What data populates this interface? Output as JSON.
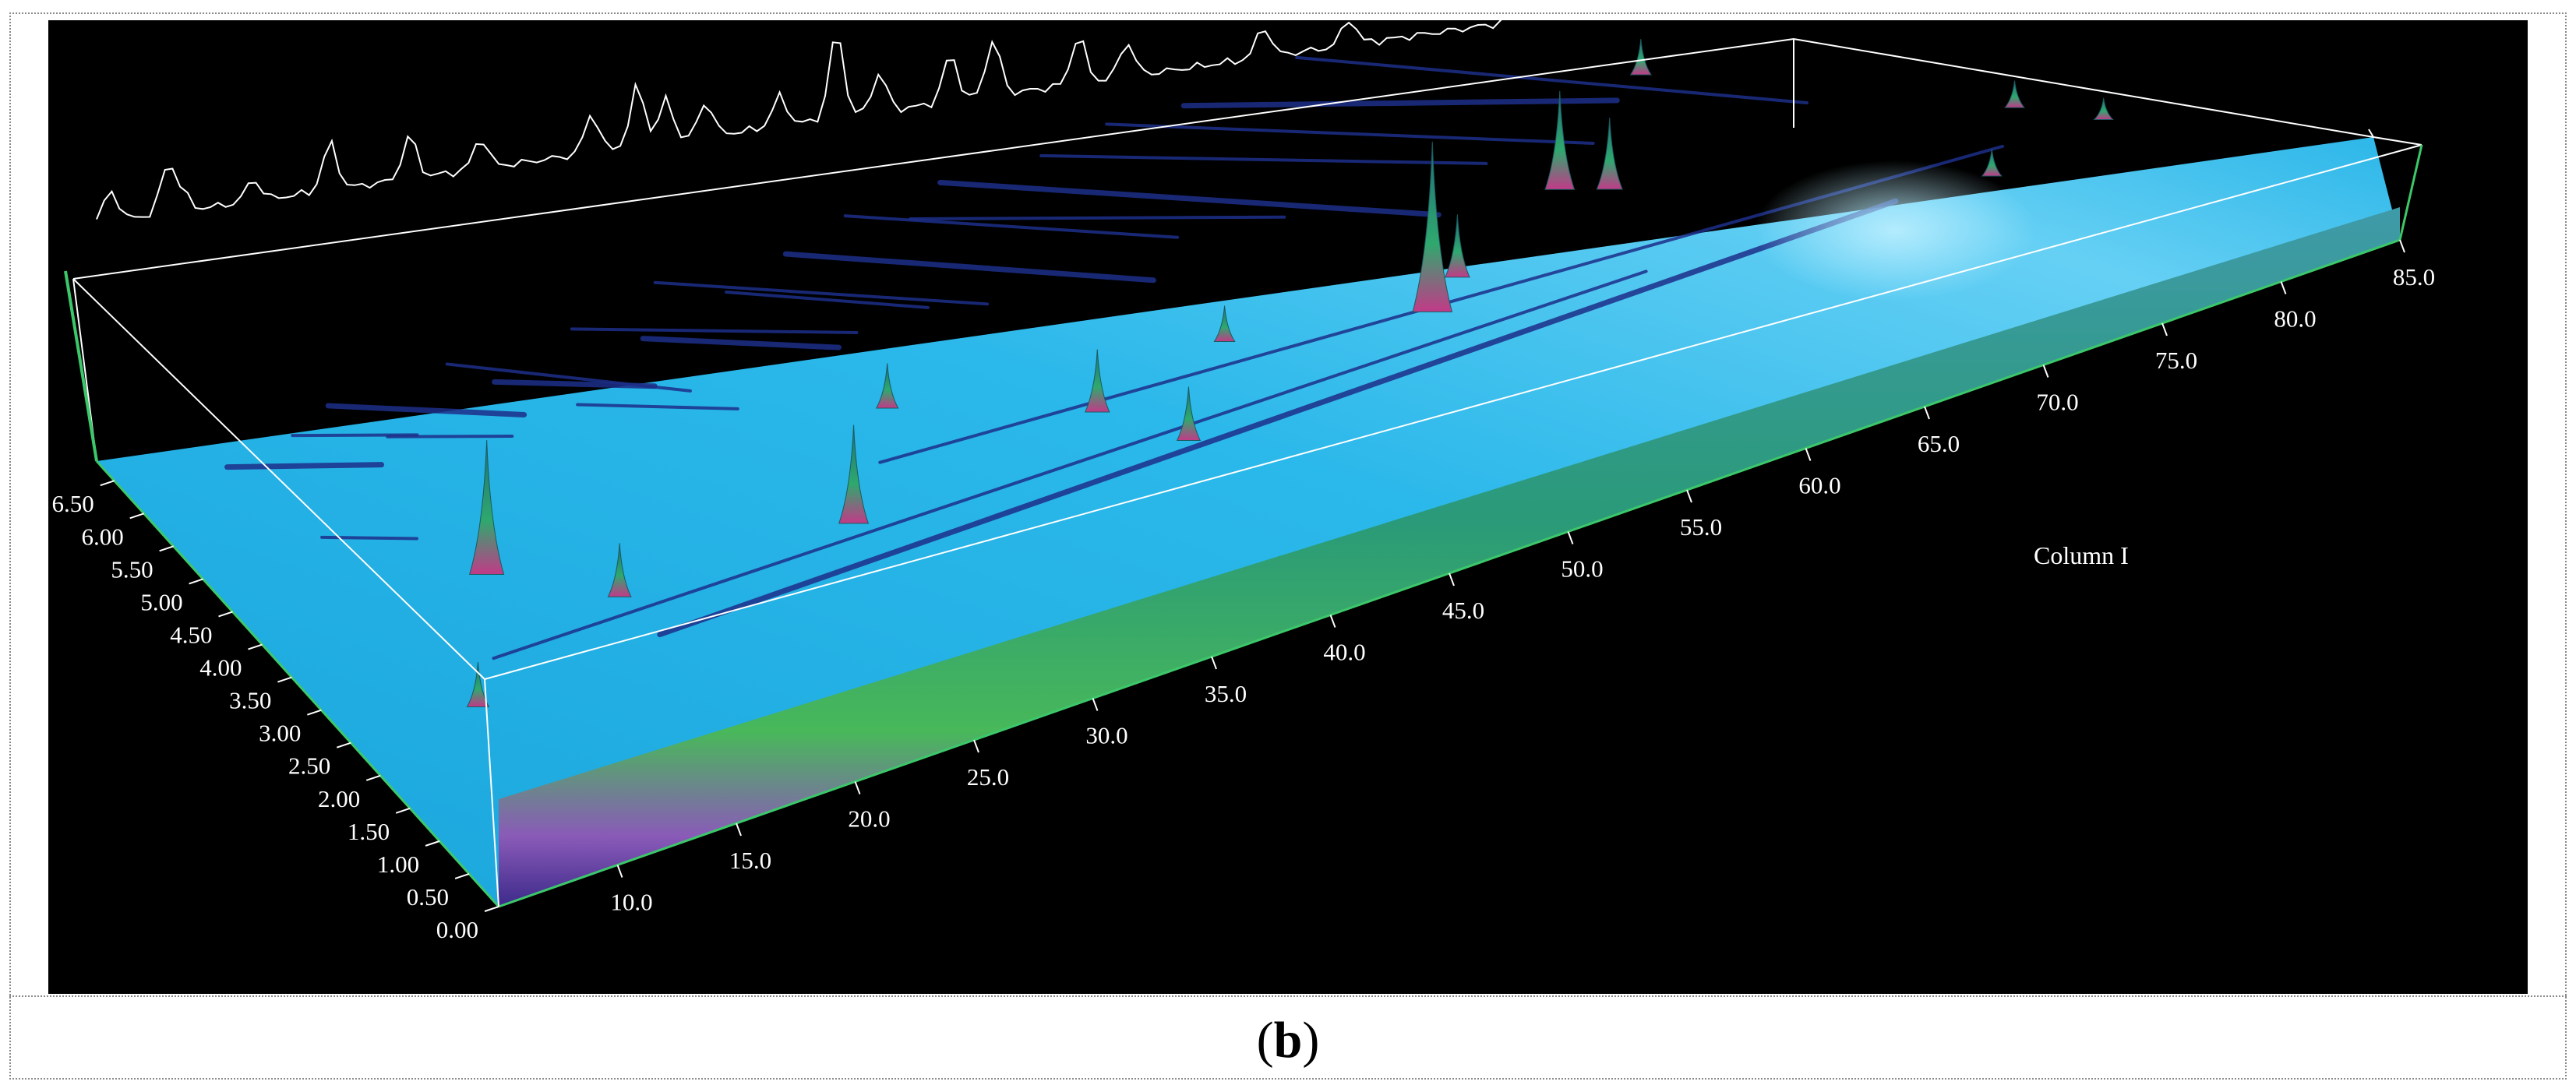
{
  "caption": {
    "open": "(",
    "letter": "b",
    "close": ")"
  },
  "chart_data": {
    "type": "surface",
    "xlabel": "Column I",
    "ylabel": "",
    "x_ticks": [
      "10.0",
      "15.0",
      "20.0",
      "25.0",
      "30.0",
      "35.0",
      "40.0",
      "45.0",
      "50.0",
      "55.0",
      "60.0",
      "65.0",
      "70.0",
      "75.0",
      "80.0",
      "85.0"
    ],
    "y_ticks": [
      "0.00",
      "0.50",
      "1.00",
      "1.50",
      "2.00",
      "2.50",
      "3.00",
      "3.50",
      "4.00",
      "4.50",
      "5.00",
      "5.50",
      "6.00",
      "6.50"
    ],
    "xlim": [
      5.0,
      85.0
    ],
    "ylim": [
      0.0,
      6.8
    ],
    "colors": {
      "background": "#000000",
      "surface": "#29b6e6",
      "streak": "#1d2f8a",
      "peak": "#2e9a7a",
      "tick": "#ffffff"
    },
    "peaks": [
      {
        "x": 14.2,
        "y": 3.9,
        "h": 0.75
      },
      {
        "x": 17.8,
        "y": 3.1,
        "h": 0.3
      },
      {
        "x": 27.4,
        "y": 3.0,
        "h": 0.55
      },
      {
        "x": 31.8,
        "y": 4.2,
        "h": 0.25
      },
      {
        "x": 38.4,
        "y": 3.3,
        "h": 0.35
      },
      {
        "x": 40.5,
        "y": 2.6,
        "h": 0.3
      },
      {
        "x": 44.5,
        "y": 3.6,
        "h": 0.2
      },
      {
        "x": 52.0,
        "y": 3.1,
        "h": 0.95
      },
      {
        "x": 53.8,
        "y": 3.4,
        "h": 0.35
      },
      {
        "x": 59.6,
        "y": 4.0,
        "h": 0.55
      },
      {
        "x": 61.2,
        "y": 3.8,
        "h": 0.4
      },
      {
        "x": 65.5,
        "y": 5.0,
        "h": 0.2
      },
      {
        "x": 73.8,
        "y": 2.4,
        "h": 0.15
      },
      {
        "x": 76.5,
        "y": 3.1,
        "h": 0.15
      },
      {
        "x": 79.0,
        "y": 2.6,
        "h": 0.12
      },
      {
        "x": 10.1,
        "y": 2.4,
        "h": 0.25
      }
    ],
    "tic_trace": [
      {
        "x": 5.5,
        "h": 0.35
      },
      {
        "x": 7.5,
        "h": 0.55
      },
      {
        "x": 8.0,
        "h": 0.2
      },
      {
        "x": 10.5,
        "h": 0.25
      },
      {
        "x": 13.2,
        "h": 0.55
      },
      {
        "x": 16.0,
        "h": 0.5
      },
      {
        "x": 18.5,
        "h": 0.35
      },
      {
        "x": 22.4,
        "h": 0.45
      },
      {
        "x": 24.0,
        "h": 0.7
      },
      {
        "x": 25.0,
        "h": 0.5
      },
      {
        "x": 26.4,
        "h": 0.4
      },
      {
        "x": 29.0,
        "h": 0.35
      },
      {
        "x": 31.0,
        "h": 1.0
      },
      {
        "x": 32.5,
        "h": 0.45
      },
      {
        "x": 35.0,
        "h": 0.55
      },
      {
        "x": 36.5,
        "h": 0.65
      },
      {
        "x": 39.5,
        "h": 0.55
      },
      {
        "x": 41.2,
        "h": 0.4
      },
      {
        "x": 46.0,
        "h": 0.35
      },
      {
        "x": 49.0,
        "h": 0.3
      },
      {
        "x": 55.0,
        "h": 0.3
      },
      {
        "x": 60.0,
        "h": 0.3
      },
      {
        "x": 65.0,
        "h": 0.3
      },
      {
        "x": 70.5,
        "h": 0.25
      }
    ]
  }
}
